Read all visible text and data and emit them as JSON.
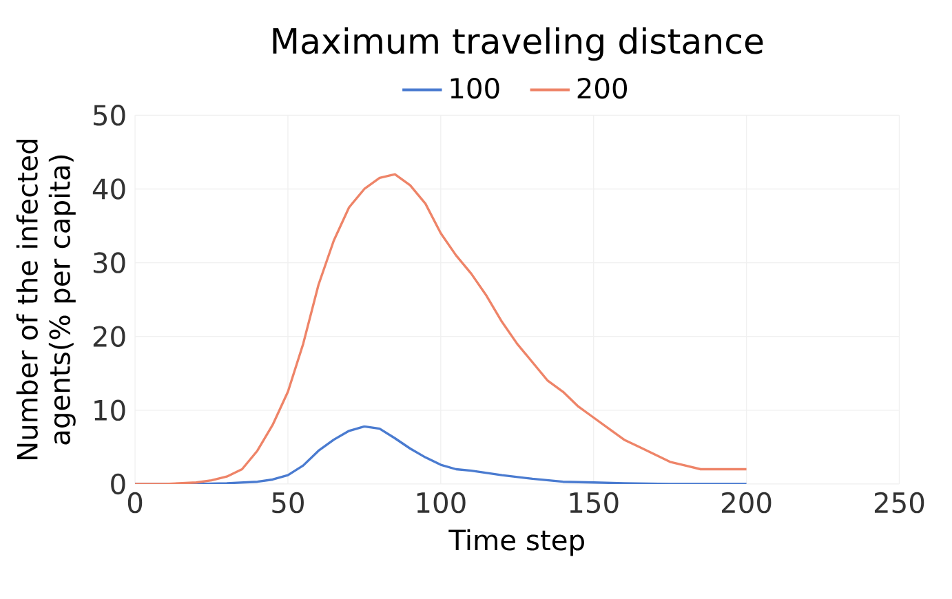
{
  "chart_data": {
    "type": "line",
    "title": "Maximum traveling distance",
    "xlabel": "Time step",
    "ylabel": "Number of the infected agents(% per capita)",
    "xlim": [
      0,
      250
    ],
    "xticks": [
      0,
      50,
      100,
      150,
      200,
      250
    ],
    "ylim": [
      0,
      50
    ],
    "yticks": [
      0,
      10,
      20,
      30,
      40,
      50
    ],
    "grid": true,
    "legend": "top",
    "marker": "none",
    "line_style": "solid",
    "series": [
      {
        "name": "100",
        "color": "#4a7bd0",
        "x": [
          0,
          10,
          20,
          30,
          40,
          45,
          50,
          55,
          60,
          65,
          70,
          75,
          80,
          85,
          90,
          95,
          100,
          105,
          110,
          115,
          120,
          130,
          140,
          150,
          160,
          175,
          200
        ],
        "values": [
          0,
          0,
          0,
          0.1,
          0.3,
          0.6,
          1.2,
          2.5,
          4.5,
          6,
          7.2,
          7.8,
          7.5,
          6.2,
          4.8,
          3.6,
          2.6,
          2,
          1.8,
          1.5,
          1.2,
          0.7,
          0.3,
          0.2,
          0.1,
          0,
          0
        ]
      },
      {
        "name": "200",
        "color": "#ee8468",
        "x": [
          0,
          10,
          20,
          25,
          30,
          35,
          40,
          45,
          50,
          55,
          60,
          65,
          70,
          75,
          80,
          85,
          90,
          95,
          100,
          105,
          110,
          115,
          120,
          125,
          130,
          135,
          140,
          145,
          150,
          155,
          160,
          165,
          170,
          175,
          180,
          185,
          190,
          195,
          200
        ],
        "values": [
          0,
          0,
          0.2,
          0.5,
          1,
          2,
          4.5,
          8,
          12.5,
          19,
          27,
          33,
          37.5,
          40,
          41.5,
          42,
          40.5,
          38,
          34,
          31,
          28.5,
          25.5,
          22,
          19,
          16.5,
          14,
          12.5,
          10.5,
          9,
          7.5,
          6,
          5,
          4,
          3,
          2.5,
          2,
          2,
          2,
          2
        ]
      }
    ]
  }
}
